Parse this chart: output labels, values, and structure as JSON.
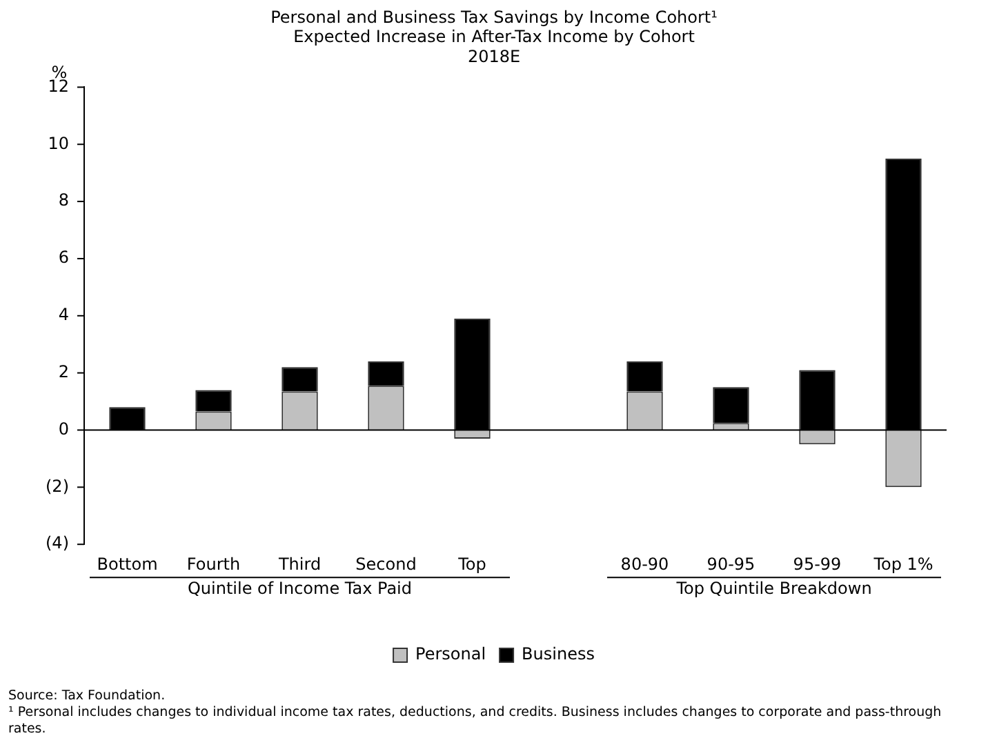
{
  "chart_data": {
    "type": "bar",
    "stacked": true,
    "title": "Personal and Business Tax Savings by Income Cohort¹",
    "subtitle": "Expected Increase in After-Tax Income by Cohort\n2018E",
    "ylabel": "%",
    "categories": [
      "Bottom",
      "Fourth",
      "Third",
      "Second",
      "Top",
      null,
      "80-90",
      "90-95",
      "95-99",
      "Top 1%"
    ],
    "series": [
      {
        "name": "Personal",
        "color": "#c0c0c0",
        "values": [
          0,
          0.65,
          1.35,
          1.55,
          -0.3,
          null,
          1.35,
          0.25,
          -0.5,
          -2.0
        ]
      },
      {
        "name": "Business",
        "color": "#000000",
        "values": [
          0.8,
          0.75,
          0.85,
          0.85,
          3.9,
          null,
          1.05,
          1.25,
          2.1,
          9.5
        ]
      }
    ],
    "ylim": [
      -4,
      12
    ],
    "yticks": [
      {
        "value": -4,
        "label": "(4)"
      },
      {
        "value": -2,
        "label": "(2)"
      },
      0,
      2,
      4,
      6,
      8,
      10,
      12
    ],
    "grid": false,
    "legend": "bottom",
    "ref_lines": [
      {
        "axis": "y",
        "value": 0,
        "color": "#000000"
      }
    ],
    "annotations": [
      "Quintile of Income Tax Paid",
      "Top Quintile Breakdown",
      "Source: Tax Foundation.",
      "¹ Personal includes changes to individual income tax rates, deductions, and credits. Business includes changes to corporate and pass-through rates."
    ]
  }
}
